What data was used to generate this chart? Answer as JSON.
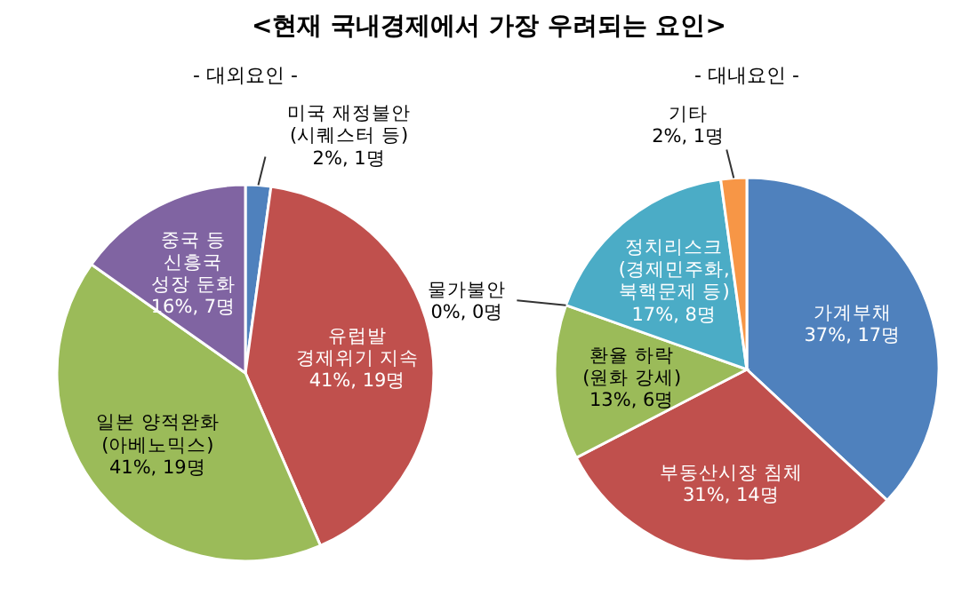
{
  "chart_data": [
    {
      "type": "pie",
      "title": "<현재 국내경제에서 가장 우려되는 요인>",
      "subtitle": "- 대외요인 -",
      "categories": [
        "미국 재정불안\n(시퀘스터 등)",
        "유럽발\n경제위기 지속",
        "일본 양적완화\n(아베노믹스)",
        "중국 등\n신흥국\n성장 둔화"
      ],
      "values": [
        1,
        19,
        19,
        7
      ],
      "value_labels": [
        "2%, 1명",
        "41%, 19명",
        "41%, 19명",
        "16%, 7명"
      ],
      "colors": [
        "#4f81bd",
        "#c0504d",
        "#9bbb59",
        "#8064a2"
      ]
    },
    {
      "type": "pie",
      "subtitle": "- 대내요인 -",
      "categories": [
        "가계부채",
        "부동산시장 침체",
        "환율 하락\n(원화 강세)",
        "물가불안",
        "정치리스크\n(경제민주화,\n북핵문제 등)",
        "기타"
      ],
      "values": [
        17,
        14,
        6,
        0,
        8,
        1
      ],
      "value_labels": [
        "37%, 17명",
        "31%, 14명",
        "13%, 6명",
        "0%, 0명",
        "17%, 8명",
        "2%, 1명"
      ],
      "colors": [
        "#4f81bd",
        "#c0504d",
        "#9bbb59",
        "#8064a2",
        "#4bacc6",
        "#f79646"
      ]
    }
  ]
}
